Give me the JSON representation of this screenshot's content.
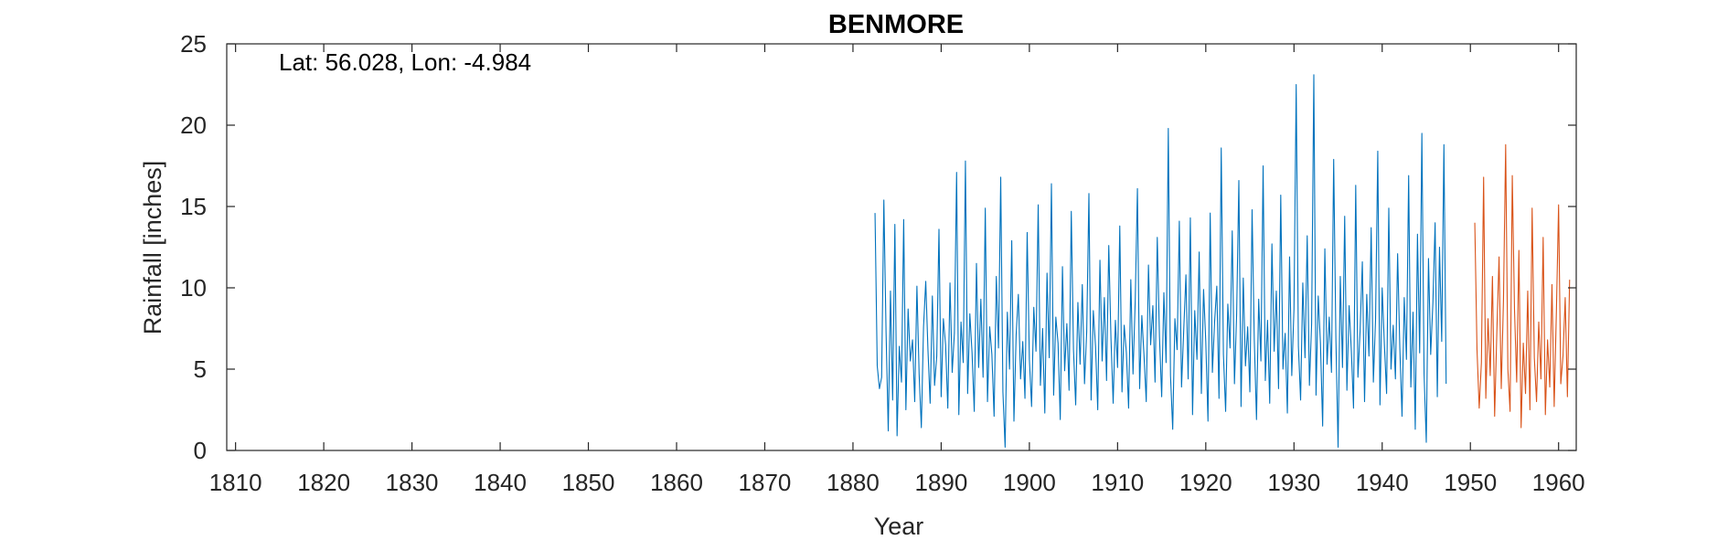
{
  "chart_data": {
    "type": "line",
    "title": "BENMORE",
    "xlabel": "Year",
    "ylabel": "Rainfall [inches]",
    "annotation": "Lat: 56.028, Lon: -4.984",
    "xlim": [
      1809,
      1962
    ],
    "ylim": [
      0,
      25
    ],
    "xticks": [
      1810,
      1820,
      1830,
      1840,
      1850,
      1860,
      1870,
      1880,
      1890,
      1900,
      1910,
      1920,
      1930,
      1940,
      1950,
      1960
    ],
    "yticks": [
      0,
      5,
      10,
      15,
      20,
      25
    ],
    "grid": false,
    "series": [
      {
        "color": "#0072BD",
        "x_start": 1882.5,
        "step": 0.25,
        "values": [
          14.6,
          5.2,
          3.8,
          4.5,
          15.4,
          7.3,
          1.2,
          9.8,
          3.1,
          13.9,
          0.9,
          6.4,
          4.2,
          14.2,
          2.5,
          8.7,
          5.5,
          6.8,
          3.0,
          10.1,
          4.7,
          1.4,
          7.6,
          10.4,
          6.2,
          2.9,
          9.5,
          4.0,
          5.8,
          13.6,
          3.3,
          8.1,
          6.5,
          2.6,
          10.3,
          4.8,
          7.2,
          17.1,
          2.2,
          7.9,
          5.4,
          17.8,
          3.5,
          8.4,
          6.0,
          2.4,
          11.5,
          5.1,
          9.3,
          4.5,
          14.9,
          3.0,
          7.6,
          5.9,
          2.1,
          10.7,
          6.3,
          16.8,
          3.6,
          0.2,
          8.5,
          5.0,
          12.9,
          1.8,
          7.1,
          9.6,
          4.4,
          6.7,
          3.2,
          13.4,
          5.6,
          2.7,
          8.8,
          6.1,
          15.1,
          4.0,
          7.5,
          2.3,
          10.9,
          5.7,
          16.4,
          3.4,
          8.2,
          6.6,
          1.9,
          11.3,
          4.9,
          7.8,
          3.7,
          14.7,
          6.2,
          2.8,
          9.1,
          5.3,
          10.2,
          4.1,
          7.3,
          15.8,
          3.1,
          8.6,
          6.4,
          2.5,
          11.7,
          5.5,
          9.4,
          4.3,
          12.6,
          6.9,
          2.9,
          8.0,
          5.1,
          13.8,
          3.6,
          7.7,
          6.0,
          2.6,
          10.5,
          4.7,
          9.2,
          16.1,
          3.8,
          8.3,
          5.8,
          3.0,
          11.4,
          6.5,
          8.9,
          4.2,
          13.1,
          7.0,
          3.3,
          9.7,
          5.4,
          19.8,
          4.6,
          1.3,
          8.1,
          6.2,
          14.1,
          3.9,
          7.4,
          10.8,
          4.4,
          14.3,
          2.2,
          8.6,
          5.6,
          12.2,
          3.5,
          9.9,
          6.7,
          1.8,
          14.6,
          4.8,
          7.9,
          10.1,
          3.2,
          18.6,
          5.9,
          2.4,
          9.0,
          6.3,
          13.5,
          4.1,
          8.4,
          16.6,
          2.7,
          10.6,
          5.2,
          7.6,
          3.6,
          14.8,
          6.8,
          1.9,
          9.3,
          5.5,
          17.5,
          4.3,
          8.0,
          2.9,
          12.7,
          6.1,
          9.8,
          3.8,
          15.7,
          5.0,
          7.2,
          2.3,
          11.9,
          4.6,
          8.7,
          22.5,
          6.4,
          3.1,
          10.3,
          5.7,
          13.2,
          4.0,
          7.8,
          23.1,
          3.4,
          9.5,
          6.6,
          1.5,
          12.4,
          5.3,
          8.2,
          4.8,
          17.9,
          6.9,
          0.2,
          10.7,
          5.1,
          14.4,
          3.7,
          8.9,
          6.2,
          2.6,
          16.3,
          4.5,
          7.4,
          11.6,
          3.0,
          9.6,
          5.8,
          13.7,
          4.2,
          8.1,
          18.4,
          2.8,
          10.0,
          6.5,
          3.5,
          14.9,
          5.0,
          7.7,
          4.4,
          12.1,
          6.3,
          2.1,
          9.4,
          5.6,
          16.9,
          3.9,
          8.5,
          1.3,
          13.3,
          6.0,
          19.5,
          4.7,
          0.5,
          11.8,
          5.9,
          9.1,
          14.0,
          3.3,
          12.5,
          6.7,
          18.8,
          4.1
        ]
      },
      {
        "color": "#D95319",
        "x_start": 1950.5,
        "step": 0.25,
        "values": [
          14.0,
          6.2,
          2.6,
          5.4,
          16.8,
          3.2,
          8.1,
          4.6,
          10.7,
          2.1,
          7.3,
          11.9,
          3.8,
          9.2,
          18.8,
          5.0,
          2.4,
          16.9,
          8.7,
          4.2,
          12.3,
          1.4,
          6.6,
          3.5,
          9.8,
          2.5,
          14.9,
          5.7,
          3.0,
          7.9,
          4.4,
          13.1,
          2.2,
          6.8,
          3.9,
          10.2,
          2.7,
          8.5,
          15.1,
          4.1,
          5.8,
          9.4,
          3.3,
          10.5
        ]
      }
    ]
  }
}
